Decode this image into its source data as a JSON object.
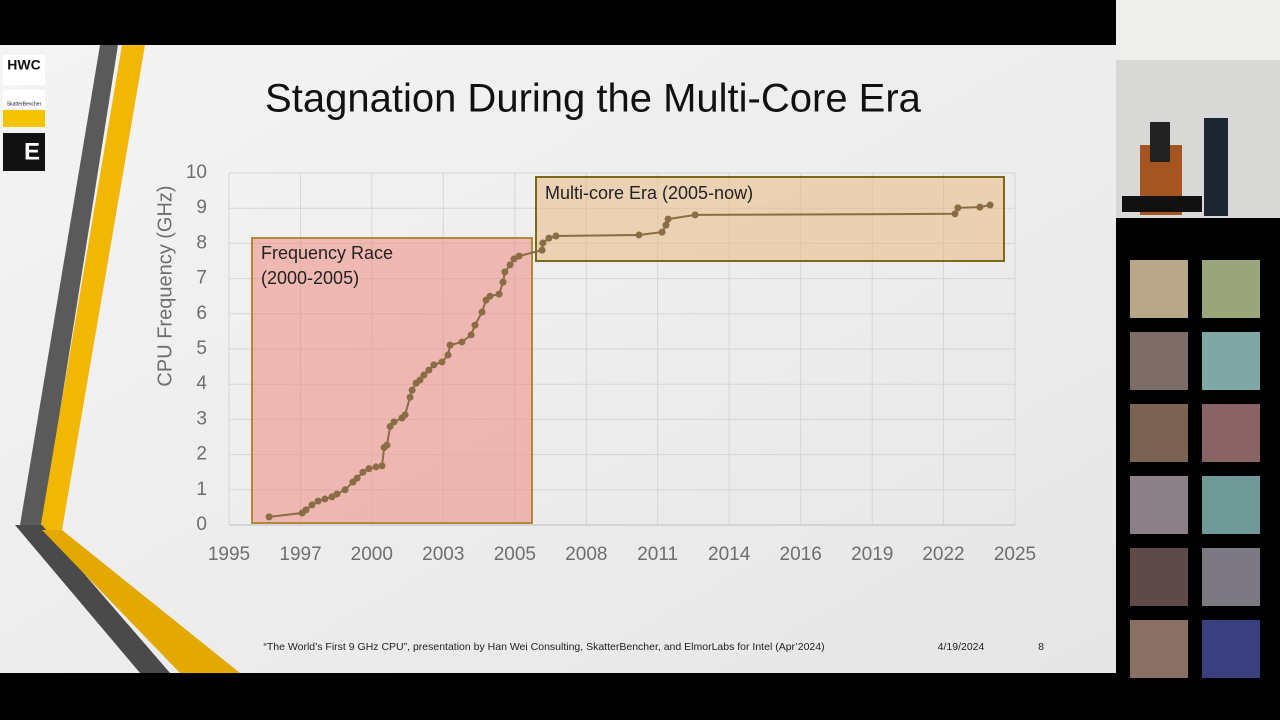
{
  "logos": {
    "hwc": "HWC",
    "skatter": "SkatterBencher",
    "elmor": "E"
  },
  "chart_data": {
    "type": "line",
    "title": "Stagnation During the Multi-Core Era",
    "y_label": "CPU Frequency (GHz)",
    "annotations": [
      "Frequency Race",
      "(2000-2005)",
      "Multi-core Era (2005-now)"
    ],
    "color": "#8a6d45",
    "markers": true,
    "grid": true,
    "xlim": [
      1995,
      2025
    ],
    "xticks": [
      1995,
      {
        "value": 1997.73,
        "label": "1997"
      },
      {
        "value": 2000.45,
        "label": "2000"
      },
      {
        "value": 2003.18,
        "label": "2003"
      },
      {
        "value": 2005.91,
        "label": "2005"
      },
      {
        "value": 2008.64,
        "label": "2008"
      },
      {
        "value": 2011.36,
        "label": "2011"
      },
      {
        "value": 2014.09,
        "label": "2014"
      },
      {
        "value": 2016.82,
        "label": "2016"
      },
      {
        "value": 2019.55,
        "label": "2019"
      },
      {
        "value": 2022.27,
        "label": "2022"
      },
      2025
    ],
    "ylim": [
      0,
      10
    ],
    "yticks": [
      0,
      1,
      2,
      3,
      4,
      5,
      6,
      7,
      8,
      9,
      10
    ],
    "x": [
      1996.53,
      1997.79,
      1997.94,
      1998.17,
      1998.4,
      1998.66,
      1998.93,
      1999.12,
      1999.43,
      1999.73,
      1999.89,
      2000.11,
      2000.34,
      2000.61,
      2000.84,
      2000.92,
      2001.03,
      2001.15,
      2001.3,
      2001.6,
      2001.72,
      2001.91,
      2001.99,
      2002.14,
      2002.29,
      2002.44,
      2002.63,
      2002.82,
      2003.13,
      2003.36,
      2003.44,
      2003.89,
      2004.24,
      2004.39,
      2004.66,
      2004.81,
      2004.96,
      2005.31,
      2005.46,
      2005.53,
      2005.73,
      2005.88,
      2006.07,
      2006.95,
      2006.98,
      2007.21,
      2007.48,
      2010.65,
      2011.53,
      2011.68,
      2011.76,
      2012.79,
      2022.71,
      2022.82,
      2023.66,
      2024.05
    ],
    "values": [
      0.23,
      0.34,
      0.43,
      0.57,
      0.68,
      0.74,
      0.8,
      0.88,
      1.0,
      1.22,
      1.33,
      1.5,
      1.6,
      1.65,
      1.68,
      2.2,
      2.27,
      2.8,
      2.93,
      3.04,
      3.13,
      3.63,
      3.83,
      4.03,
      4.12,
      4.26,
      4.4,
      4.55,
      4.63,
      4.83,
      5.11,
      5.2,
      5.4,
      5.68,
      6.05,
      6.39,
      6.5,
      6.56,
      6.9,
      7.19,
      7.39,
      7.56,
      7.64,
      7.81,
      8.01,
      8.15,
      8.21,
      8.24,
      8.32,
      8.52,
      8.69,
      8.81,
      8.84,
      9.01,
      9.03,
      9.09
    ]
  },
  "footer": {
    "citation": "“The World’s First 9 GHz CPU”, presentation by Han Wei Consulting, SkatterBencher, and ElmorLabs for Intel (Apr’2024)",
    "date": "4/19/2024",
    "page": "8"
  }
}
